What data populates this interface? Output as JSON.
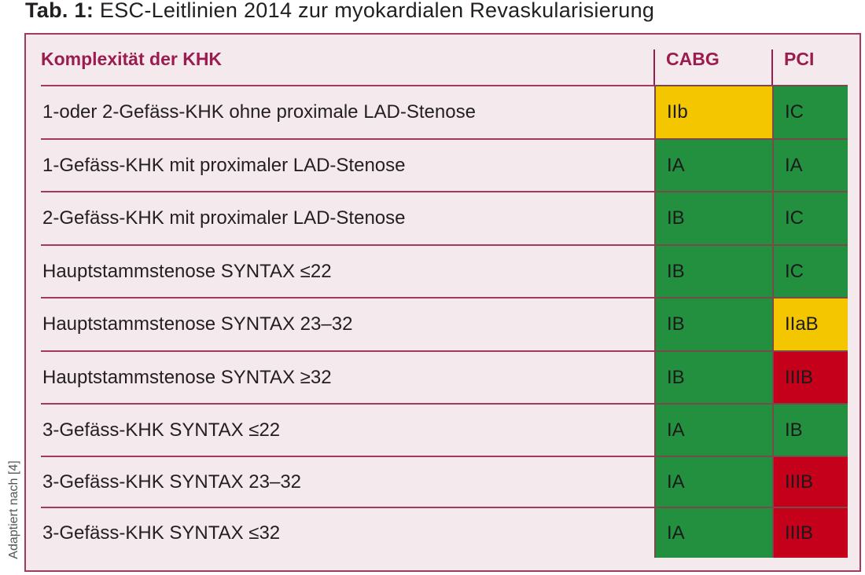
{
  "title": {
    "prefix": "Tab. 1:",
    "text": " ESC-Leitlinien 2014 zur myokardialen Revaskularisierung"
  },
  "source_note": "Adaptiert nach [4]",
  "colors": {
    "green": "#23903f",
    "yellow": "#f3c600",
    "red": "#c5001a",
    "border": "#9b1c4f",
    "background": "#f4e9ec"
  },
  "table": {
    "headers": [
      "Komplexität der KHK",
      "CABG",
      "PCI"
    ],
    "rows": [
      {
        "label": "1-oder 2-Gefäss-KHK ohne proximale LAD-Stenose",
        "cabg": "IIb",
        "cabg_color": "yellow",
        "pci": "IC",
        "pci_color": "green"
      },
      {
        "label": "1-Gefäss-KHK mit proximaler LAD-Stenose",
        "cabg": "IA",
        "cabg_color": "green",
        "pci": "IA",
        "pci_color": "green"
      },
      {
        "label": "2-Gefäss-KHK mit proximaler LAD-Stenose",
        "cabg": "IB",
        "cabg_color": "green",
        "pci": "IC",
        "pci_color": "green"
      },
      {
        "label": "Hauptstammstenose SYNTAX ≤22",
        "cabg": "IB",
        "cabg_color": "green",
        "pci": "IC",
        "pci_color": "green"
      },
      {
        "label": "Hauptstammstenose SYNTAX  23–32",
        "cabg": "IB",
        "cabg_color": "green",
        "pci": "IIaB",
        "pci_color": "yellow"
      },
      {
        "label": "Hauptstammstenose SYNTAX  ≥32",
        "cabg": "IB",
        "cabg_color": "green",
        "pci": "IIIB",
        "pci_color": "red"
      },
      {
        "label": "3-Gefäss-KHK SYNTAX ≤22",
        "cabg": "IA",
        "cabg_color": "green",
        "pci": "IB",
        "pci_color": "green"
      },
      {
        "label": "3-Gefäss-KHK SYNTAX 23–32",
        "cabg": "IA",
        "cabg_color": "green",
        "pci": "IIIB",
        "pci_color": "red"
      },
      {
        "label": "3-Gefäss-KHK SYNTAX ≤32",
        "cabg": "IA",
        "cabg_color": "green",
        "pci": "IIIB",
        "pci_color": "red"
      }
    ]
  }
}
